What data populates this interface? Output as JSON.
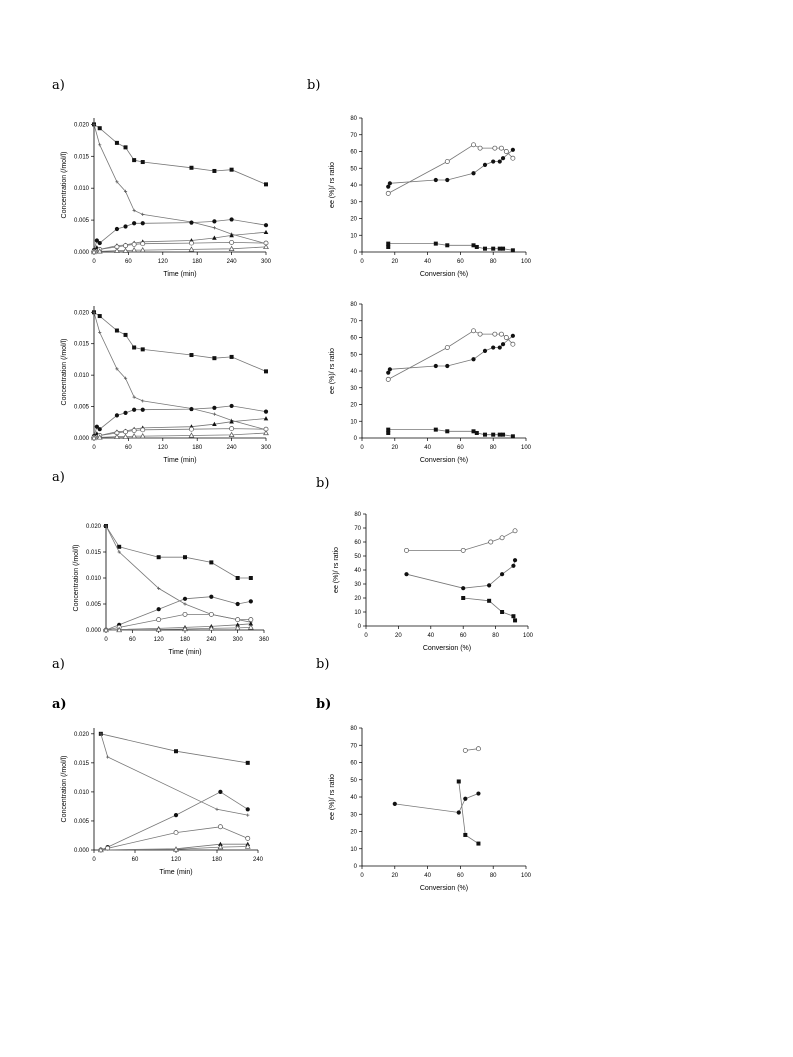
{
  "panel_labels": {
    "p1a": "a)",
    "p1b": "b)",
    "p3a": "a)",
    "p3b": "b)",
    "p4a": "a)",
    "p4b": "b)",
    "p5a": "a)",
    "p5b": "b)"
  },
  "chart_data": [
    {
      "type": "line",
      "xlabel": "Time (min)",
      "ylabel": "Concentration (/mol/l)",
      "xlim": [
        0,
        300
      ],
      "ylim": [
        0,
        0.021
      ],
      "xticks": [
        0,
        60,
        120,
        180,
        240,
        300
      ],
      "yticks": [
        0.0,
        0.005,
        0.01,
        0.015,
        0.02
      ],
      "series": [
        {
          "marker": "square",
          "x": [
            0,
            10,
            40,
            55,
            70,
            85,
            170,
            210,
            240,
            300
          ],
          "y": [
            0.02,
            0.0194,
            0.0171,
            0.0164,
            0.0144,
            0.0141,
            0.0132,
            0.0127,
            0.0129,
            0.0106
          ]
        },
        {
          "marker": "plus",
          "x": [
            0,
            10,
            40,
            55,
            70,
            85,
            170,
            210,
            240,
            300
          ],
          "y": [
            0.02,
            0.0168,
            0.011,
            0.0095,
            0.0065,
            0.0059,
            0.0047,
            0.0038,
            0.0028,
            0.0013
          ]
        },
        {
          "marker": "circle",
          "x": [
            0,
            5,
            10,
            40,
            55,
            70,
            85,
            170,
            210,
            240,
            300
          ],
          "y": [
            0.0003,
            0.0018,
            0.0014,
            0.0036,
            0.004,
            0.0045,
            0.0045,
            0.0046,
            0.0048,
            0.0051,
            0.0042
          ]
        },
        {
          "marker": "triangle",
          "x": [
            0,
            5,
            10,
            40,
            55,
            70,
            85,
            170,
            210,
            240,
            300
          ],
          "y": [
            0.0002,
            0.0007,
            0.0004,
            0.001,
            0.0011,
            0.0014,
            0.0016,
            0.0018,
            0.0022,
            0.0026,
            0.0031
          ]
        },
        {
          "marker": "open-circle",
          "x": [
            0,
            10,
            40,
            55,
            70,
            85,
            170,
            240,
            300
          ],
          "y": [
            0.0001,
            0.0004,
            0.0008,
            0.001,
            0.0012,
            0.0013,
            0.0014,
            0.0015,
            0.0014
          ]
        },
        {
          "marker": "open-triangle",
          "x": [
            0,
            10,
            40,
            55,
            70,
            85,
            170,
            240,
            300
          ],
          "y": [
            0.0,
            0.0001,
            0.0002,
            0.0002,
            0.0003,
            0.0003,
            0.0004,
            0.0005,
            0.0008
          ]
        }
      ]
    },
    {
      "type": "line",
      "xlabel": "Conversion (%)",
      "ylabel": "ee (%)/ rs ratio",
      "xlim": [
        0,
        100
      ],
      "ylim": [
        0,
        80
      ],
      "xticks": [
        0,
        20,
        40,
        60,
        80,
        100
      ],
      "yticks": [
        0,
        10,
        20,
        30,
        40,
        50,
        60,
        70,
        80
      ],
      "series": [
        {
          "marker": "open-circle",
          "x": [
            16,
            52,
            68,
            72,
            81,
            85,
            88,
            92
          ],
          "y": [
            35,
            54,
            64,
            62,
            62,
            62,
            60,
            56
          ]
        },
        {
          "marker": "circle",
          "x": [
            16,
            17,
            45,
            52,
            68,
            75,
            80,
            84,
            86,
            92
          ],
          "y": [
            39,
            41,
            43,
            43,
            47,
            52,
            54,
            54,
            56,
            61
          ]
        },
        {
          "marker": "square",
          "x": [
            16,
            16,
            45,
            52,
            68,
            70,
            75,
            80,
            84,
            86,
            92
          ],
          "y": [
            3,
            5,
            5,
            4,
            4,
            3,
            2,
            2,
            2,
            2,
            1
          ]
        }
      ]
    },
    {
      "type": "line",
      "xlabel": "Time (min)",
      "ylabel": "Concentration (/mol/l)",
      "xlim": [
        0,
        300
      ],
      "ylim": [
        0,
        0.021
      ],
      "xticks": [
        0,
        60,
        120,
        180,
        240,
        300
      ],
      "yticks": [
        0.0,
        0.005,
        0.01,
        0.015,
        0.02
      ],
      "series": [
        {
          "marker": "square",
          "x": [
            0,
            10,
            40,
            55,
            70,
            85,
            170,
            210,
            240,
            300
          ],
          "y": [
            0.02,
            0.0194,
            0.0171,
            0.0164,
            0.0144,
            0.0141,
            0.0132,
            0.0127,
            0.0129,
            0.0106
          ]
        },
        {
          "marker": "plus",
          "x": [
            0,
            10,
            40,
            55,
            70,
            85,
            170,
            210,
            240,
            300
          ],
          "y": [
            0.02,
            0.0168,
            0.011,
            0.0095,
            0.0065,
            0.0059,
            0.0047,
            0.0038,
            0.0028,
            0.0013
          ]
        },
        {
          "marker": "circle",
          "x": [
            0,
            5,
            10,
            40,
            55,
            70,
            85,
            170,
            210,
            240,
            300
          ],
          "y": [
            0.0003,
            0.0018,
            0.0014,
            0.0036,
            0.004,
            0.0045,
            0.0045,
            0.0046,
            0.0048,
            0.0051,
            0.0042
          ]
        },
        {
          "marker": "triangle",
          "x": [
            0,
            5,
            10,
            40,
            55,
            70,
            85,
            170,
            210,
            240,
            300
          ],
          "y": [
            0.0002,
            0.0007,
            0.0004,
            0.001,
            0.0011,
            0.0014,
            0.0016,
            0.0018,
            0.0022,
            0.0026,
            0.0031
          ]
        },
        {
          "marker": "open-circle",
          "x": [
            0,
            10,
            40,
            55,
            70,
            85,
            170,
            240,
            300
          ],
          "y": [
            0.0001,
            0.0004,
            0.0008,
            0.001,
            0.0012,
            0.0013,
            0.0014,
            0.0015,
            0.0014
          ]
        },
        {
          "marker": "open-triangle",
          "x": [
            0,
            10,
            40,
            55,
            70,
            85,
            170,
            240,
            300
          ],
          "y": [
            0.0,
            0.0001,
            0.0002,
            0.0002,
            0.0003,
            0.0003,
            0.0004,
            0.0005,
            0.0008
          ]
        }
      ]
    },
    {
      "type": "line",
      "xlabel": "Conversion (%)",
      "ylabel": "ee (%)/ rs ratio",
      "xlim": [
        0,
        100
      ],
      "ylim": [
        0,
        80
      ],
      "xticks": [
        0,
        20,
        40,
        60,
        80,
        100
      ],
      "yticks": [
        0,
        10,
        20,
        30,
        40,
        50,
        60,
        70,
        80
      ],
      "series": [
        {
          "marker": "open-circle",
          "x": [
            16,
            52,
            68,
            72,
            81,
            85,
            88,
            92
          ],
          "y": [
            35,
            54,
            64,
            62,
            62,
            62,
            60,
            56
          ]
        },
        {
          "marker": "circle",
          "x": [
            16,
            17,
            45,
            52,
            68,
            75,
            80,
            84,
            86,
            92
          ],
          "y": [
            39,
            41,
            43,
            43,
            47,
            52,
            54,
            54,
            56,
            61
          ]
        },
        {
          "marker": "square",
          "x": [
            16,
            16,
            45,
            52,
            68,
            70,
            75,
            80,
            84,
            86,
            92
          ],
          "y": [
            3,
            5,
            5,
            4,
            4,
            3,
            2,
            2,
            2,
            2,
            1
          ]
        }
      ]
    },
    {
      "type": "line",
      "xlabel": "Time (min)",
      "ylabel": "Concentration (/mol/l)",
      "xlim": [
        0,
        360
      ],
      "ylim": [
        0,
        0.02
      ],
      "xticks": [
        0,
        60,
        120,
        180,
        240,
        300,
        360
      ],
      "yticks": [
        0.0,
        0.005,
        0.01,
        0.015,
        0.02
      ],
      "series": [
        {
          "marker": "square",
          "x": [
            0,
            30,
            120,
            180,
            240,
            300,
            330
          ],
          "y": [
            0.02,
            0.016,
            0.014,
            0.014,
            0.013,
            0.01,
            0.01
          ]
        },
        {
          "marker": "plus",
          "x": [
            0,
            30,
            120,
            180,
            240,
            300,
            330
          ],
          "y": [
            0.02,
            0.015,
            0.008,
            0.005,
            0.003,
            0.002,
            0.0015
          ]
        },
        {
          "marker": "circle",
          "x": [
            0,
            30,
            120,
            180,
            240,
            300,
            330
          ],
          "y": [
            0.0,
            0.001,
            0.004,
            0.006,
            0.0064,
            0.005,
            0.0055
          ]
        },
        {
          "marker": "open-circle",
          "x": [
            0,
            30,
            120,
            180,
            240,
            300,
            330
          ],
          "y": [
            0.0,
            0.0005,
            0.002,
            0.003,
            0.003,
            0.002,
            0.002
          ]
        },
        {
          "marker": "triangle",
          "x": [
            0,
            30,
            120,
            180,
            240,
            300,
            330
          ],
          "y": [
            0.0,
            0.0001,
            0.0003,
            0.0005,
            0.0007,
            0.001,
            0.0012
          ]
        },
        {
          "marker": "open-triangle",
          "x": [
            0,
            30,
            120,
            180,
            240,
            300,
            330
          ],
          "y": [
            0.0,
            0.0,
            0.0001,
            0.0002,
            0.0003,
            0.0004,
            0.0005
          ]
        }
      ]
    },
    {
      "type": "line",
      "xlabel": "Conversion (%)",
      "ylabel": "ee (%)/ rs ratio",
      "xlim": [
        0,
        100
      ],
      "ylim": [
        0,
        80
      ],
      "xticks": [
        0,
        20,
        40,
        60,
        80,
        100
      ],
      "yticks": [
        0,
        10,
        20,
        30,
        40,
        50,
        60,
        70,
        80
      ],
      "series": [
        {
          "marker": "open-circle",
          "x": [
            25,
            60,
            77,
            84,
            92
          ],
          "y": [
            54,
            54,
            60,
            63,
            68
          ]
        },
        {
          "marker": "circle",
          "x": [
            25,
            60,
            76,
            84,
            91,
            92
          ],
          "y": [
            37,
            27,
            29,
            37,
            43,
            47
          ]
        },
        {
          "marker": "square",
          "x": [
            60,
            76,
            84,
            91,
            92
          ],
          "y": [
            20,
            18,
            10,
            7,
            4
          ]
        }
      ]
    },
    {
      "type": "line",
      "xlabel": "Time (min)",
      "ylabel": "Concentration (/mol/l)",
      "xlim": [
        0,
        240
      ],
      "ylim": [
        0,
        0.021
      ],
      "xticks": [
        0,
        60,
        120,
        180,
        240
      ],
      "yticks": [
        0.0,
        0.005,
        0.01,
        0.015,
        0.02
      ],
      "series": [
        {
          "marker": "square",
          "x": [
            10,
            120,
            225
          ],
          "y": [
            0.02,
            0.017,
            0.015
          ]
        },
        {
          "marker": "plus",
          "x": [
            10,
            20,
            180,
            225
          ],
          "y": [
            0.02,
            0.016,
            0.007,
            0.006
          ]
        },
        {
          "marker": "circle",
          "x": [
            10,
            20,
            120,
            185,
            225
          ],
          "y": [
            0.0,
            0.0005,
            0.006,
            0.01,
            0.007
          ]
        },
        {
          "marker": "open-circle",
          "x": [
            10,
            20,
            120,
            185,
            225
          ],
          "y": [
            0.0,
            0.0003,
            0.003,
            0.004,
            0.002
          ]
        },
        {
          "marker": "triangle",
          "x": [
            10,
            120,
            185,
            225
          ],
          "y": [
            0.0,
            0.0002,
            0.001,
            0.001
          ]
        },
        {
          "marker": "open-triangle",
          "x": [
            10,
            120,
            185,
            225
          ],
          "y": [
            0.0,
            0.0001,
            0.0005,
            0.0006
          ]
        }
      ]
    },
    {
      "type": "line",
      "xlabel": "Conversion (%)",
      "ylabel": "ee (%)/ rs ratio",
      "xlim": [
        0,
        100
      ],
      "ylim": [
        0,
        80
      ],
      "xticks": [
        0,
        20,
        40,
        60,
        80,
        100
      ],
      "yticks": [
        0,
        10,
        20,
        30,
        40,
        50,
        60,
        70,
        80
      ],
      "series": [
        {
          "marker": "open-circle",
          "x": [
            63,
            71
          ],
          "y": [
            67,
            68
          ]
        },
        {
          "marker": "circle",
          "x": [
            20,
            59,
            63,
            71
          ],
          "y": [
            36,
            31,
            39,
            42
          ]
        },
        {
          "marker": "square",
          "x": [
            59,
            63,
            71
          ],
          "y": [
            49,
            18,
            13
          ]
        }
      ]
    }
  ]
}
